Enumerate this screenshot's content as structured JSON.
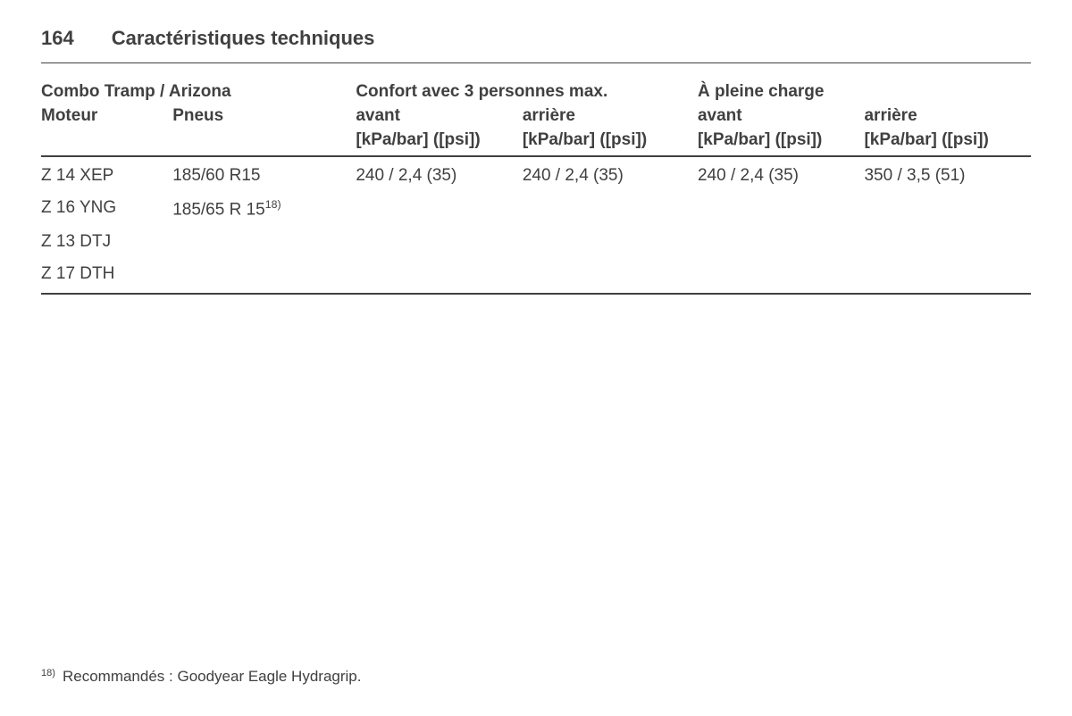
{
  "page": {
    "number": "164",
    "chapter": "Caractéristiques techniques"
  },
  "table": {
    "group_label": "Combo Tramp / Arizona",
    "cond1_label": "Confort avec 3 personnes max.",
    "cond2_label": "À pleine charge",
    "col_motor": "Moteur",
    "col_tires": "Pneus",
    "col_front": "avant",
    "col_rear": "arrière",
    "unit": "[kPa/bar] ([psi])",
    "rows": [
      {
        "motor": "Z 14 XEP",
        "tires": "185/60 R15",
        "tires_sup": "",
        "c1f": "240 / 2,4 (35)",
        "c1r": "240 / 2,4 (35)",
        "c2f": "240 / 2,4 (35)",
        "c2r": "350 / 3,5 (51)"
      },
      {
        "motor": "Z 16 YNG",
        "tires": "185/65 R 15",
        "tires_sup": "18)",
        "c1f": "",
        "c1r": "",
        "c2f": "",
        "c2r": ""
      },
      {
        "motor": "Z 13 DTJ",
        "tires": "",
        "tires_sup": "",
        "c1f": "",
        "c1r": "",
        "c2f": "",
        "c2r": ""
      },
      {
        "motor": "Z 17 DTH",
        "tires": "",
        "tires_sup": "",
        "c1f": "",
        "c1r": "",
        "c2f": "",
        "c2r": ""
      }
    ]
  },
  "footnote": {
    "ref": "18)",
    "text": "Recommandés : Goodyear Eagle Hydragrip."
  },
  "style": {
    "text_color": "#404040",
    "bg_color": "#ffffff",
    "rule_thin": "1px",
    "rule_thick": "2px",
    "heading_fontsize": 22,
    "body_fontsize": 19,
    "footnote_fontsize": 17
  }
}
